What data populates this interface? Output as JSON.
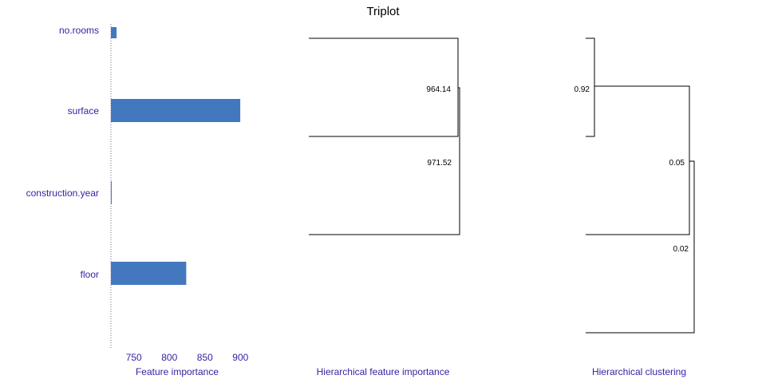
{
  "title": "Triplot",
  "chart_data": [
    {
      "type": "bar",
      "orientation": "horizontal",
      "xlabel": "Feature importance",
      "categories": [
        "no.rooms",
        "surface",
        "construction.year",
        "floor"
      ],
      "values": [
        728,
        902,
        720.5,
        826
      ],
      "xlim": [
        720,
        912
      ],
      "xticks": [
        750,
        800,
        850,
        900
      ],
      "bar_color": "#4378bf",
      "baseline_value": 720
    },
    {
      "type": "dendrogram",
      "xlabel": "Hierarchical feature importance",
      "merges": [
        {
          "label": "964.14",
          "left": "no.rooms",
          "right": "surface"
        },
        {
          "label": "971.52",
          "left": "no.rooms+surface",
          "right": "construction.year"
        }
      ]
    },
    {
      "type": "dendrogram",
      "xlabel": "Hierarchical clustering",
      "merges": [
        {
          "label": "0.92",
          "left": "no.rooms",
          "right": "surface"
        },
        {
          "label": "0.05",
          "left": "no.rooms+surface",
          "right": "construction.year"
        },
        {
          "label": "0.02",
          "left": "no.rooms+surface+construction.year",
          "right": "floor"
        }
      ]
    }
  ]
}
